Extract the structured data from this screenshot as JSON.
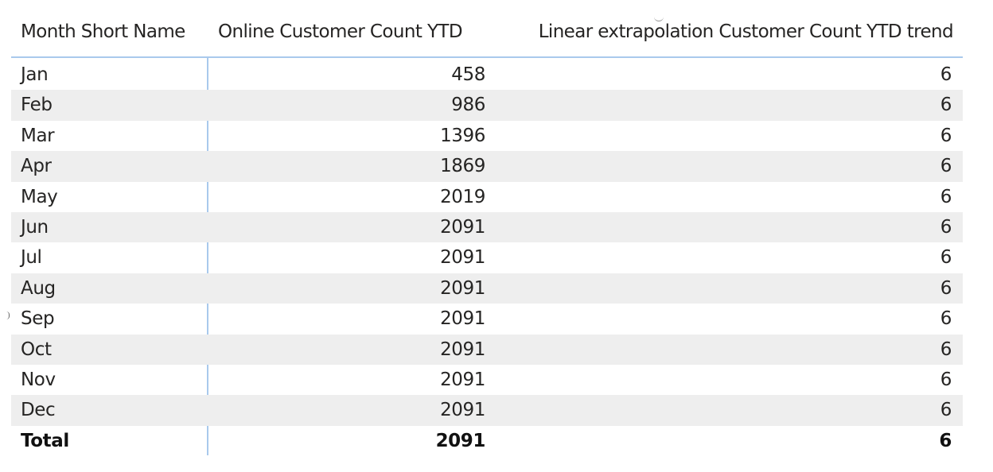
{
  "table": {
    "columns": [
      "Month Short Name",
      "Online Customer Count YTD",
      "Linear extrapolation Customer Count YTD trend"
    ],
    "rows": [
      {
        "month": "Jan",
        "online": "458",
        "trend": "6"
      },
      {
        "month": "Feb",
        "online": "986",
        "trend": "6"
      },
      {
        "month": "Mar",
        "online": "1396",
        "trend": "6"
      },
      {
        "month": "Apr",
        "online": "1869",
        "trend": "6"
      },
      {
        "month": "May",
        "online": "2019",
        "trend": "6"
      },
      {
        "month": "Jun",
        "online": "2091",
        "trend": "6"
      },
      {
        "month": "Jul",
        "online": "2091",
        "trend": "6"
      },
      {
        "month": "Aug",
        "online": "2091",
        "trend": "6"
      },
      {
        "month": "Sep",
        "online": "2091",
        "trend": "6"
      },
      {
        "month": "Oct",
        "online": "2091",
        "trend": "6"
      },
      {
        "month": "Nov",
        "online": "2091",
        "trend": "6"
      },
      {
        "month": "Dec",
        "online": "2091",
        "trend": "6"
      }
    ],
    "total": {
      "label": "Total",
      "online": "2091",
      "trend": "6"
    }
  },
  "colors": {
    "header_rule": "#a9c9ec",
    "alt_row": "#eeeeee",
    "text": "#252423"
  },
  "icons": {
    "sort": "sort-indicator-icon"
  }
}
